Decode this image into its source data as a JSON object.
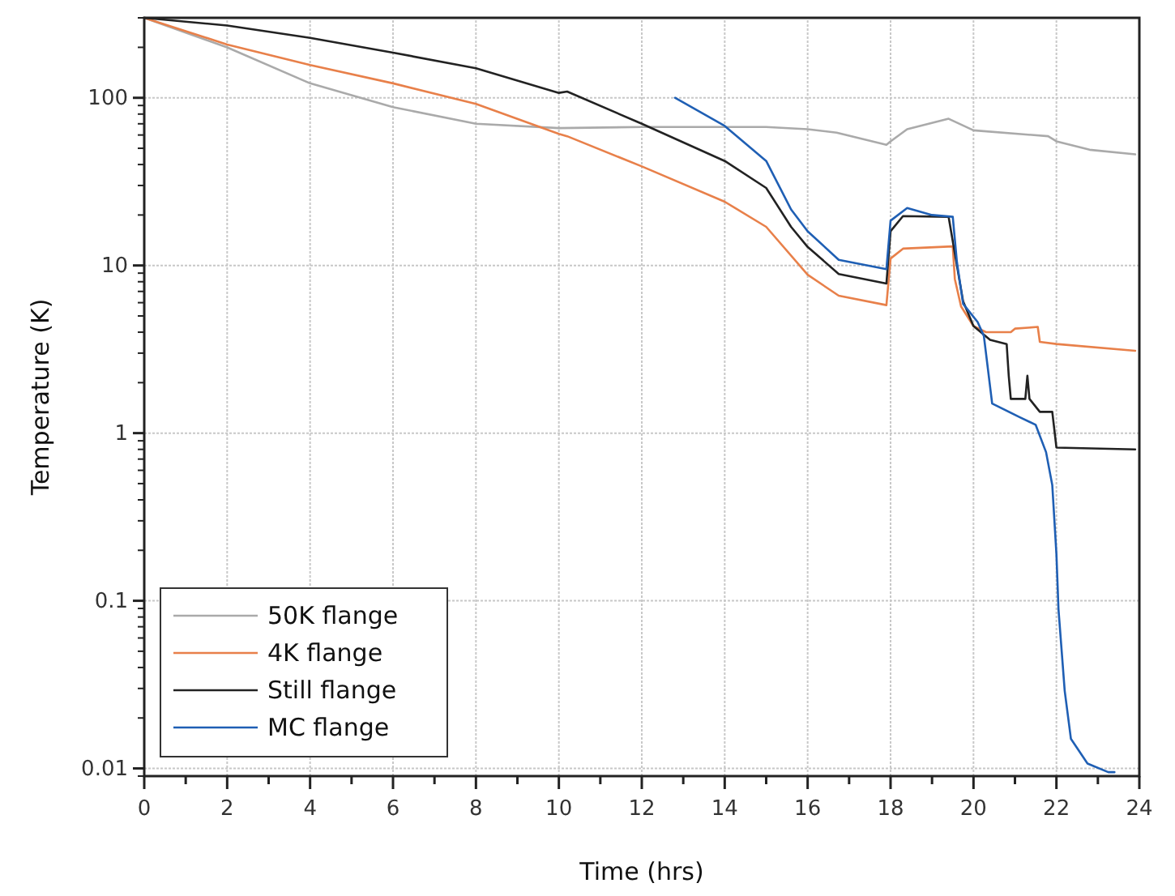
{
  "chart_data": {
    "type": "line",
    "xlabel": "Time (hrs)",
    "ylabel": "Temperature (K)",
    "log": "y",
    "grid": true,
    "legend": "bottom left",
    "line_style": "solid",
    "xlim": [
      0,
      24
    ],
    "ylim": [
      0.009,
      300
    ],
    "xticks": [
      0,
      {
        "value": 1,
        "label": null
      },
      2,
      {
        "value": 3,
        "label": null
      },
      4,
      {
        "value": 5,
        "label": null
      },
      6,
      {
        "value": 7,
        "label": null
      },
      8,
      {
        "value": 9,
        "label": null
      },
      10,
      {
        "value": 11,
        "label": null
      },
      12,
      {
        "value": 13,
        "label": null
      },
      14,
      {
        "value": 15,
        "label": null
      },
      16,
      {
        "value": 17,
        "label": null
      },
      18,
      {
        "value": 19,
        "label": null
      },
      20,
      {
        "value": 21,
        "label": null
      },
      22,
      {
        "value": 23,
        "label": null
      },
      24
    ],
    "yticks": [
      0.01,
      0.1,
      1,
      10,
      100
    ],
    "series": [
      {
        "name": "50K flange",
        "color": "#aaaaaa",
        "x": [
          0,
          2,
          4,
          6,
          8,
          10,
          12,
          14,
          15,
          16,
          16.7,
          17.9,
          18,
          18.4,
          19.4,
          20,
          21.8,
          22,
          22.8,
          23.9
        ],
        "values": [
          300,
          200,
          122,
          88,
          70,
          66,
          67,
          67,
          67,
          65,
          62,
          52.5,
          55,
          65,
          75,
          64,
          59,
          55,
          49,
          46
        ]
      },
      {
        "name": "4K flange",
        "color": "#e8804a",
        "x": [
          0,
          2,
          4,
          6,
          8,
          10,
          10.2,
          12,
          14,
          15,
          16,
          16.75,
          17.9,
          18,
          18.3,
          19.5,
          19.55,
          19.7,
          20,
          20.3,
          20.9,
          21,
          21.55,
          21.6,
          22,
          23.9
        ],
        "values": [
          300,
          208,
          157,
          122,
          92,
          61,
          59,
          39,
          24,
          17,
          8.8,
          6.6,
          5.8,
          11,
          12.6,
          13,
          8.3,
          5.7,
          4.35,
          4,
          4,
          4.2,
          4.3,
          3.5,
          3.4,
          3.1
        ]
      },
      {
        "name": "Still flange",
        "color": "#222222",
        "x": [
          0,
          2,
          4,
          6,
          8,
          10,
          10.2,
          12,
          14,
          15,
          15.6,
          16,
          16.75,
          17.9,
          18,
          18.3,
          19.4,
          19.55,
          19.75,
          20,
          20.4,
          20.8,
          20.85,
          20.9,
          21.25,
          21.3,
          21.35,
          21.6,
          21.9,
          22,
          23.9
        ],
        "values": [
          300,
          270,
          228,
          186,
          150,
          107,
          109,
          70,
          42,
          29,
          17,
          12.9,
          8.9,
          7.8,
          16,
          19.7,
          19.5,
          11.8,
          6.1,
          4.35,
          3.6,
          3.4,
          2.2,
          1.6,
          1.6,
          2.2,
          1.6,
          1.34,
          1.34,
          0.82,
          0.8
        ]
      },
      {
        "name": "MC flange",
        "color": "#1f5fb4",
        "x": [
          12.8,
          14,
          15,
          15.6,
          16,
          16.75,
          17.9,
          18,
          18.4,
          19,
          19.5,
          19.6,
          19.75,
          20.1,
          20.25,
          20.45,
          21.1,
          21.5,
          21.75,
          21.9,
          22,
          22.05,
          22.2,
          22.35,
          22.75,
          23.25,
          23.4
        ],
        "values": [
          100,
          68,
          42,
          21.6,
          16,
          10.8,
          9.5,
          18.5,
          22,
          20,
          19.5,
          10.5,
          5.9,
          4.6,
          3.8,
          1.5,
          1.25,
          1.12,
          0.77,
          0.49,
          0.19,
          0.089,
          0.029,
          0.015,
          0.0107,
          0.0095,
          0.0095
        ]
      }
    ]
  }
}
